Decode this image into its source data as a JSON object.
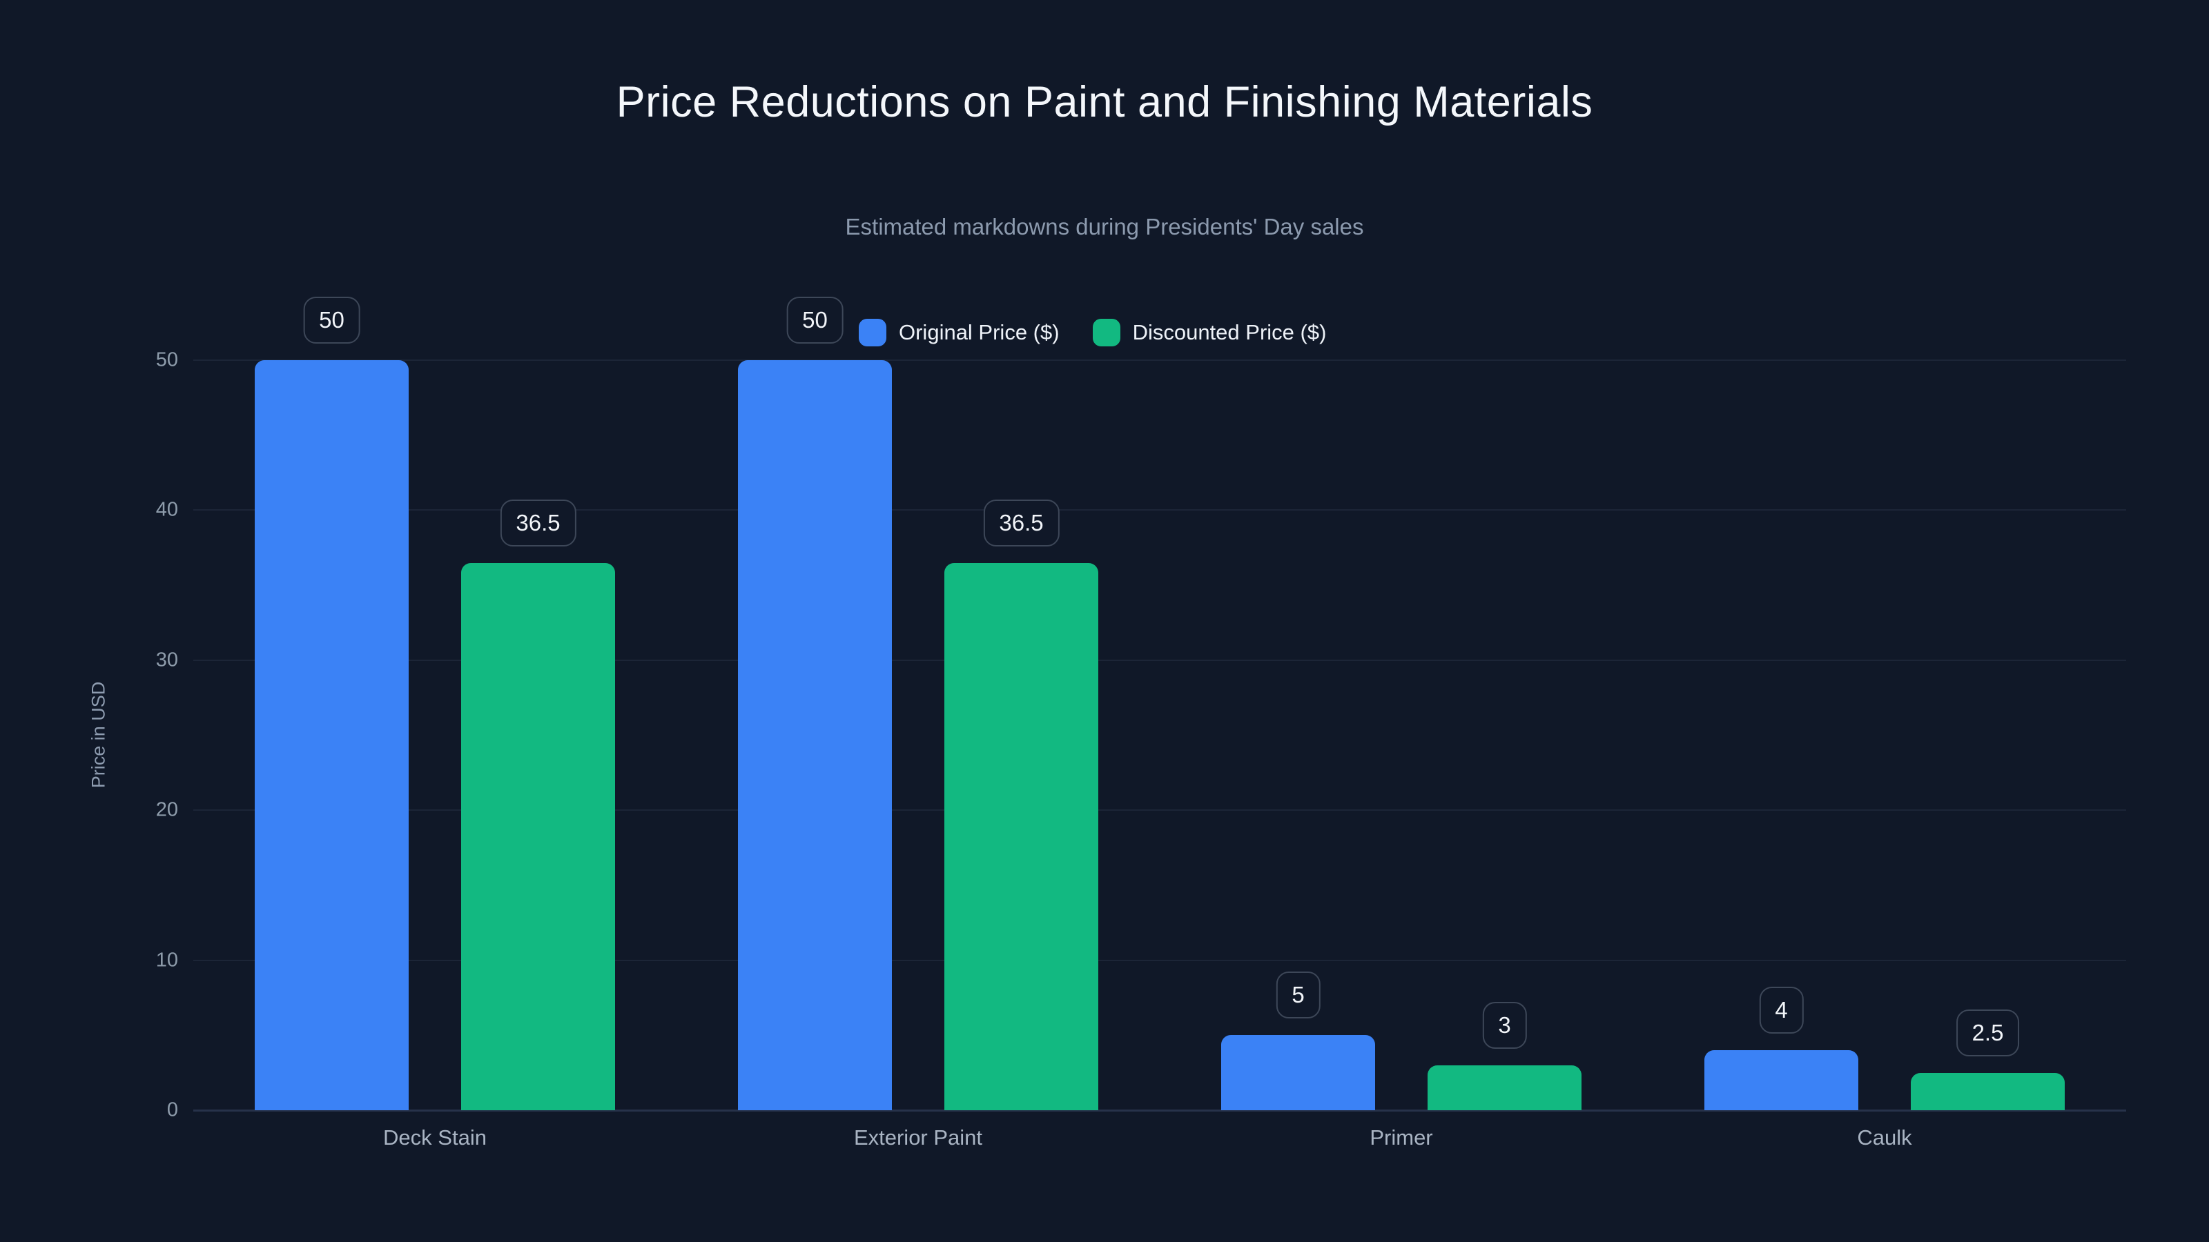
{
  "page": {
    "background": "#101828"
  },
  "header": {
    "title": "Price Reductions on Paint and Finishing Materials",
    "subtitle": "Estimated markdowns during Presidents' Day sales"
  },
  "legend": {
    "items": [
      {
        "label": "Original Price ($)",
        "color": "#3b82f6"
      },
      {
        "label": "Discounted Price ($)",
        "color": "#12b981"
      }
    ]
  },
  "chart_data": {
    "type": "bar",
    "title": "Price Reductions on Paint and Finishing Materials",
    "subtitle": "Estimated markdowns during Presidents' Day sales",
    "categories": [
      "Deck Stain",
      "Exterior Paint",
      "Primer",
      "Caulk"
    ],
    "series": [
      {
        "name": "Original Price ($)",
        "color": "#3b82f6",
        "values": [
          50,
          50,
          5,
          4
        ]
      },
      {
        "name": "Discounted Price ($)",
        "color": "#12b981",
        "values": [
          36.5,
          36.5,
          3,
          2.5
        ]
      }
    ],
    "value_labels": [
      [
        "50",
        "50",
        "5",
        "4"
      ],
      [
        "36.5",
        "36.5",
        "3",
        "2.5"
      ]
    ],
    "xlabel": "",
    "ylabel": "Price in USD",
    "yticks": [
      0,
      10,
      20,
      30,
      40,
      50
    ],
    "ylim": [
      0,
      50
    ],
    "grid": true,
    "legend_position": "top-center",
    "background": "#101828"
  }
}
